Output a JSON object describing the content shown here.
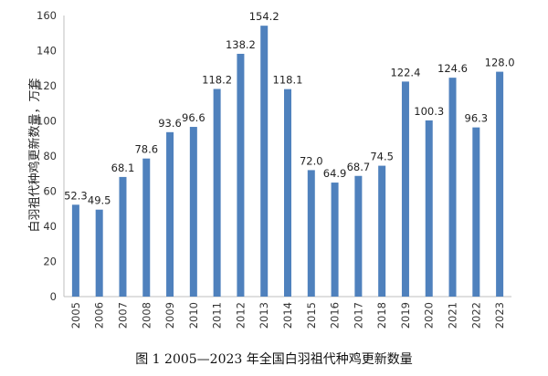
{
  "chart_data": {
    "type": "bar",
    "categories": [
      "2005",
      "2006",
      "2007",
      "2008",
      "2009",
      "2010",
      "2011",
      "2012",
      "2013",
      "2014",
      "2015",
      "2016",
      "2017",
      "2018",
      "2019",
      "2020",
      "2021",
      "2022",
      "2023"
    ],
    "values": [
      52.3,
      49.5,
      68.1,
      78.6,
      93.6,
      96.6,
      118.2,
      138.2,
      154.2,
      118.1,
      72.0,
      64.9,
      68.7,
      74.5,
      122.4,
      100.3,
      124.6,
      96.3,
      128.0
    ],
    "value_labels": [
      "52.3",
      "49.5",
      "68.1",
      "78.6",
      "93.6",
      "96.6",
      "118.2",
      "138.2",
      "154.2",
      "118.1",
      "72.0",
      "64.9",
      "68.7",
      "74.5",
      "122.4",
      "100.3",
      "124.6",
      "96.3",
      "128.0"
    ],
    "ylabel": "白羽祖代种鸡更新数量，万套",
    "xlabel": "",
    "ylim": [
      0,
      160
    ],
    "yticks": [
      "0",
      "20",
      "40",
      "60",
      "80",
      "100",
      "120",
      "140",
      "160"
    ],
    "grid": false,
    "bar_color": "#4F81BD",
    "caption": "图 1 2005—2023 年全国白羽祖代种鸡更新数量"
  }
}
